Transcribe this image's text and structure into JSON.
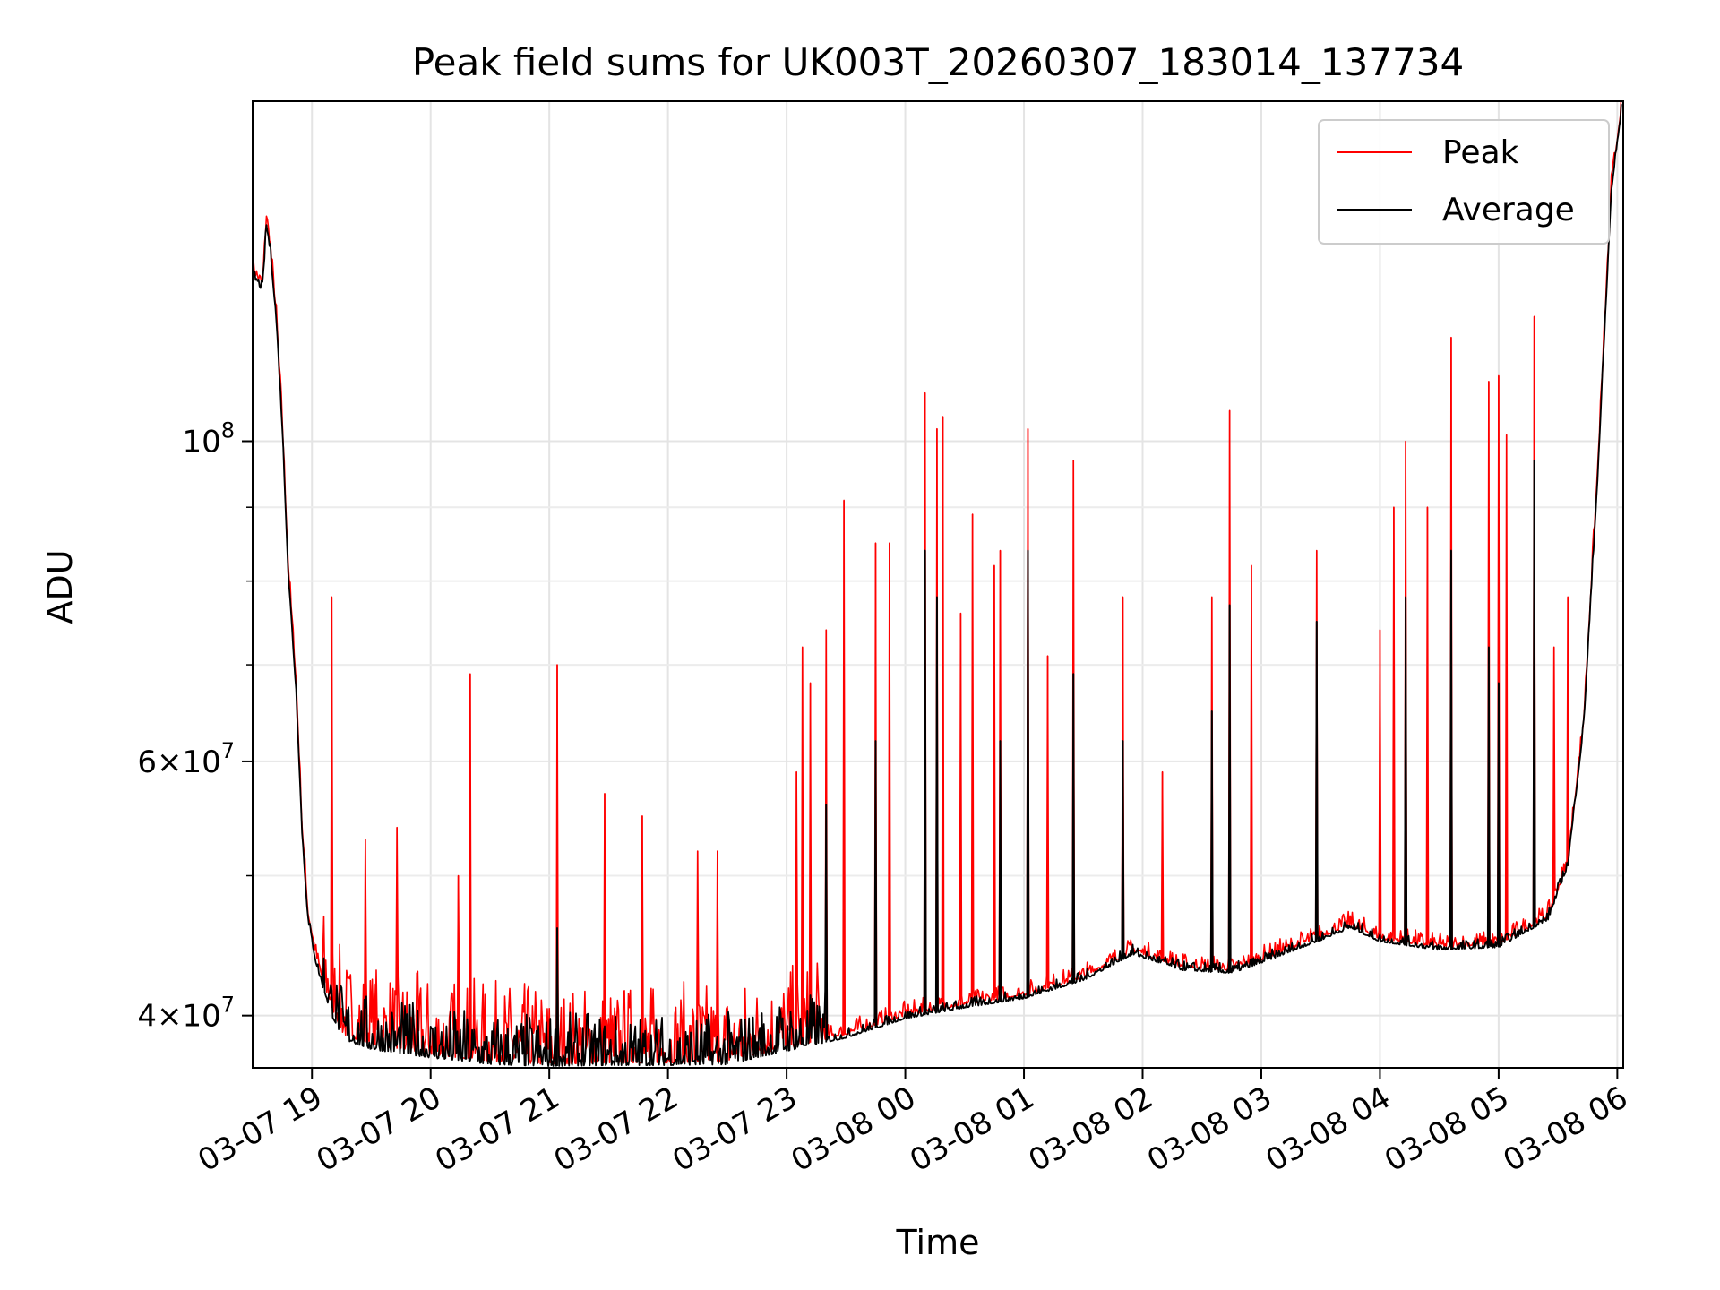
{
  "chart_data": {
    "type": "line",
    "title": "Peak field sums for UK003T_20260307_183014_137734",
    "xlabel": "Time",
    "ylabel": "ADU",
    "y_scale": "log",
    "ylim": [
      36800000,
      172000000
    ],
    "xlim": [
      "2026-03-07 18:30",
      "2026-03-08 06:03"
    ],
    "grid": true,
    "legend_position": "top-right",
    "x_ticks": [
      {
        "time": "2026-03-07 19:00",
        "label": "03-07 19"
      },
      {
        "time": "2026-03-07 20:00",
        "label": "03-07 20"
      },
      {
        "time": "2026-03-07 21:00",
        "label": "03-07 21"
      },
      {
        "time": "2026-03-07 22:00",
        "label": "03-07 22"
      },
      {
        "time": "2026-03-07 23:00",
        "label": "03-07 23"
      },
      {
        "time": "2026-03-08 00:00",
        "label": "03-08 00"
      },
      {
        "time": "2026-03-08 01:00",
        "label": "03-08 01"
      },
      {
        "time": "2026-03-08 02:00",
        "label": "03-08 02"
      },
      {
        "time": "2026-03-08 03:00",
        "label": "03-08 03"
      },
      {
        "time": "2026-03-08 04:00",
        "label": "03-08 04"
      },
      {
        "time": "2026-03-08 05:00",
        "label": "03-08 05"
      },
      {
        "time": "2026-03-08 06:00",
        "label": "03-08 06"
      }
    ],
    "y_ticks": [
      {
        "value": 40000000,
        "mantissa": "4",
        "exponent": "7"
      },
      {
        "value": 60000000,
        "mantissa": "6",
        "exponent": "7"
      },
      {
        "value": 100000000,
        "mantissa": "",
        "exponent": "8"
      }
    ],
    "y_minor_gridlines": [
      50000000,
      70000000,
      80000000,
      90000000
    ],
    "series": [
      {
        "name": "Peak",
        "color": "#ff0000",
        "points": [
          [
            "2026-03-07 18:30",
            131000000
          ],
          [
            "2026-03-07 18:32",
            130000000
          ],
          [
            "2026-03-07 18:35",
            128000000
          ],
          [
            "2026-03-07 18:37",
            143000000
          ],
          [
            "2026-03-07 18:39",
            136000000
          ],
          [
            "2026-03-07 18:42",
            122000000
          ],
          [
            "2026-03-07 18:45",
            103000000
          ],
          [
            "2026-03-07 18:48",
            82000000
          ],
          [
            "2026-03-07 18:52",
            68000000
          ],
          [
            "2026-03-07 18:55",
            54000000
          ],
          [
            "2026-03-07 18:58",
            47000000
          ],
          [
            "2026-03-07 19:02",
            44000000
          ],
          [
            "2026-03-07 19:06",
            42000000
          ],
          [
            "2026-03-07 19:10",
            40500000
          ],
          [
            "2026-03-07 19:16",
            38800000
          ],
          [
            "2026-03-07 19:30",
            38200000
          ],
          [
            "2026-03-07 20:00",
            37600000
          ],
          [
            "2026-03-07 20:30",
            37200000
          ],
          [
            "2026-03-07 21:00",
            37000000
          ],
          [
            "2026-03-07 21:30",
            37100000
          ],
          [
            "2026-03-07 22:00",
            37100000
          ],
          [
            "2026-03-07 22:30",
            37200000
          ],
          [
            "2026-03-07 23:00",
            38000000
          ],
          [
            "2026-03-07 23:30",
            38800000
          ],
          [
            "2026-03-08 00:00",
            40000000
          ],
          [
            "2026-03-08 00:30",
            40700000
          ],
          [
            "2026-03-08 01:00",
            41300000
          ],
          [
            "2026-03-08 01:30",
            42500000
          ],
          [
            "2026-03-08 01:55",
            44300000
          ],
          [
            "2026-03-08 02:20",
            43200000
          ],
          [
            "2026-03-08 02:45",
            43000000
          ],
          [
            "2026-03-08 03:00",
            43700000
          ],
          [
            "2026-03-08 03:30",
            45300000
          ],
          [
            "2026-03-08 03:45",
            46200000
          ],
          [
            "2026-03-08 04:00",
            45200000
          ],
          [
            "2026-03-08 04:30",
            44600000
          ],
          [
            "2026-03-08 05:00",
            44800000
          ],
          [
            "2026-03-08 05:25",
            46800000
          ],
          [
            "2026-03-08 05:35",
            51000000
          ],
          [
            "2026-03-08 05:43",
            64000000
          ],
          [
            "2026-03-08 05:50",
            95000000
          ],
          [
            "2026-03-08 05:57",
            150000000
          ],
          [
            "2026-03-08 06:02",
            170000000
          ]
        ],
        "spikes": [
          [
            "2026-03-07 19:10",
            78000000
          ],
          [
            "2026-03-07 19:27",
            53000000
          ],
          [
            "2026-03-07 19:43",
            54000000
          ],
          [
            "2026-03-07 20:14",
            50000000
          ],
          [
            "2026-03-07 20:20",
            69000000
          ],
          [
            "2026-03-07 21:04",
            70000000
          ],
          [
            "2026-03-07 21:28",
            57000000
          ],
          [
            "2026-03-07 21:47",
            55000000
          ],
          [
            "2026-03-07 22:15",
            52000000
          ],
          [
            "2026-03-07 22:25",
            52000000
          ],
          [
            "2026-03-07 23:05",
            59000000
          ],
          [
            "2026-03-07 23:08",
            72000000
          ],
          [
            "2026-03-07 23:12",
            68000000
          ],
          [
            "2026-03-07 23:20",
            74000000
          ],
          [
            "2026-03-07 23:29",
            91000000
          ],
          [
            "2026-03-07 23:45",
            85000000
          ],
          [
            "2026-03-07 23:52",
            85000000
          ],
          [
            "2026-03-08 00:10",
            108000000
          ],
          [
            "2026-03-08 00:16",
            102000000
          ],
          [
            "2026-03-08 00:19",
            104000000
          ],
          [
            "2026-03-08 00:28",
            76000000
          ],
          [
            "2026-03-08 00:34",
            89000000
          ],
          [
            "2026-03-08 00:45",
            82000000
          ],
          [
            "2026-03-08 00:48",
            84000000
          ],
          [
            "2026-03-08 01:02",
            102000000
          ],
          [
            "2026-03-08 01:12",
            71000000
          ],
          [
            "2026-03-08 01:25",
            97000000
          ],
          [
            "2026-03-08 01:50",
            78000000
          ],
          [
            "2026-03-08 02:10",
            59000000
          ],
          [
            "2026-03-08 02:35",
            78000000
          ],
          [
            "2026-03-08 02:44",
            105000000
          ],
          [
            "2026-03-08 02:55",
            82000000
          ],
          [
            "2026-03-08 03:28",
            84000000
          ],
          [
            "2026-03-08 04:00",
            74000000
          ],
          [
            "2026-03-08 04:07",
            90000000
          ],
          [
            "2026-03-08 04:13",
            100000000
          ],
          [
            "2026-03-08 04:24",
            90000000
          ],
          [
            "2026-03-08 04:36",
            118000000
          ],
          [
            "2026-03-08 04:55",
            110000000
          ],
          [
            "2026-03-08 05:00",
            111000000
          ],
          [
            "2026-03-08 05:04",
            101000000
          ],
          [
            "2026-03-08 05:18",
            122000000
          ],
          [
            "2026-03-08 05:28",
            72000000
          ],
          [
            "2026-03-08 05:35",
            78000000
          ]
        ]
      },
      {
        "name": "Average",
        "color": "#000000",
        "points": [
          [
            "2026-03-07 18:30",
            130000000
          ],
          [
            "2026-03-07 18:32",
            129000000
          ],
          [
            "2026-03-07 18:35",
            127000000
          ],
          [
            "2026-03-07 18:37",
            141000000
          ],
          [
            "2026-03-07 18:39",
            135000000
          ],
          [
            "2026-03-07 18:42",
            121000000
          ],
          [
            "2026-03-07 18:45",
            102000000
          ],
          [
            "2026-03-07 18:48",
            81000000
          ],
          [
            "2026-03-07 18:52",
            67000000
          ],
          [
            "2026-03-07 18:55",
            53500000
          ],
          [
            "2026-03-07 18:58",
            46500000
          ],
          [
            "2026-03-07 19:02",
            43500000
          ],
          [
            "2026-03-07 19:06",
            41600000
          ],
          [
            "2026-03-07 19:10",
            40000000
          ],
          [
            "2026-03-07 19:16",
            38500000
          ],
          [
            "2026-03-07 19:30",
            37900000
          ],
          [
            "2026-03-07 20:00",
            37400000
          ],
          [
            "2026-03-07 20:30",
            37000000
          ],
          [
            "2026-03-07 21:00",
            36900000
          ],
          [
            "2026-03-07 21:30",
            36950000
          ],
          [
            "2026-03-07 22:00",
            36950000
          ],
          [
            "2026-03-07 22:30",
            37000000
          ],
          [
            "2026-03-07 23:00",
            37800000
          ],
          [
            "2026-03-07 23:30",
            38600000
          ],
          [
            "2026-03-08 00:00",
            39800000
          ],
          [
            "2026-03-08 00:30",
            40500000
          ],
          [
            "2026-03-08 01:00",
            41100000
          ],
          [
            "2026-03-08 01:30",
            42300000
          ],
          [
            "2026-03-08 01:55",
            44100000
          ],
          [
            "2026-03-08 02:20",
            43000000
          ],
          [
            "2026-03-08 02:45",
            42800000
          ],
          [
            "2026-03-08 03:00",
            43500000
          ],
          [
            "2026-03-08 03:30",
            45100000
          ],
          [
            "2026-03-08 03:45",
            46000000
          ],
          [
            "2026-03-08 04:00",
            45000000
          ],
          [
            "2026-03-08 04:30",
            44400000
          ],
          [
            "2026-03-08 05:00",
            44600000
          ],
          [
            "2026-03-08 05:25",
            46600000
          ],
          [
            "2026-03-08 05:35",
            50800000
          ],
          [
            "2026-03-08 05:43",
            63500000
          ],
          [
            "2026-03-08 05:50",
            94000000
          ],
          [
            "2026-03-08 05:57",
            149000000
          ],
          [
            "2026-03-08 06:02",
            169000000
          ]
        ],
        "spikes": [
          [
            "2026-03-07 21:04",
            46000000
          ],
          [
            "2026-03-07 23:20",
            56000000
          ],
          [
            "2026-03-07 23:45",
            62000000
          ],
          [
            "2026-03-08 00:10",
            84000000
          ],
          [
            "2026-03-08 00:16",
            78000000
          ],
          [
            "2026-03-08 00:48",
            62000000
          ],
          [
            "2026-03-08 01:02",
            84000000
          ],
          [
            "2026-03-08 01:25",
            69000000
          ],
          [
            "2026-03-08 01:50",
            62000000
          ],
          [
            "2026-03-08 02:35",
            65000000
          ],
          [
            "2026-03-08 02:44",
            77000000
          ],
          [
            "2026-03-08 03:28",
            75000000
          ],
          [
            "2026-03-08 04:13",
            78000000
          ],
          [
            "2026-03-08 04:36",
            84000000
          ],
          [
            "2026-03-08 04:55",
            72000000
          ],
          [
            "2026-03-08 05:18",
            97000000
          ],
          [
            "2026-03-08 05:00",
            68000000
          ]
        ]
      }
    ]
  }
}
